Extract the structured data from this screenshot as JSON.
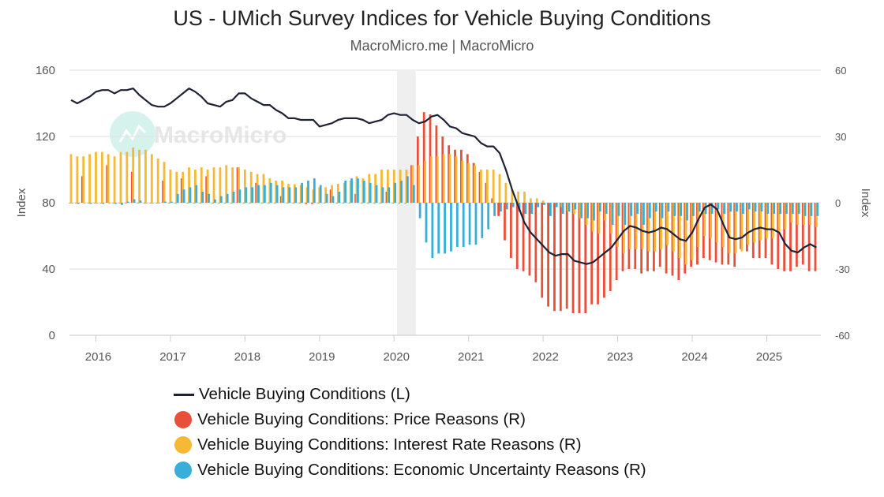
{
  "title": "US - UMich Survey Indices for Vehicle Buying Conditions",
  "subtitle": "MacroMicro.me | MacroMicro",
  "watermark": "MacroMicro",
  "chart_data": {
    "type": "bar+line",
    "left_axis": {
      "label": "Index",
      "ylim": [
        0,
        160
      ],
      "ticks": [
        "0",
        "40",
        "80",
        "120",
        "160"
      ]
    },
    "right_axis": {
      "label": "Index",
      "ylim": [
        -60,
        60
      ],
      "ticks": [
        "-60",
        "-30",
        "0",
        "30",
        "60"
      ]
    },
    "x_ticks": [
      "2016",
      "2017",
      "2018",
      "2019",
      "2020",
      "2021",
      "2022",
      "2023",
      "2024",
      "2025"
    ],
    "grid": true,
    "legend_position": "bottom",
    "recession_shading": [
      "2020-02",
      "2020-04"
    ],
    "x": [
      "2015-09",
      "2015-10",
      "2015-11",
      "2015-12",
      "2016-01",
      "2016-02",
      "2016-03",
      "2016-04",
      "2016-05",
      "2016-06",
      "2016-07",
      "2016-08",
      "2016-09",
      "2016-10",
      "2016-11",
      "2016-12",
      "2017-01",
      "2017-02",
      "2017-03",
      "2017-04",
      "2017-05",
      "2017-06",
      "2017-07",
      "2017-08",
      "2017-09",
      "2017-10",
      "2017-11",
      "2017-12",
      "2018-01",
      "2018-02",
      "2018-03",
      "2018-04",
      "2018-05",
      "2018-06",
      "2018-07",
      "2018-08",
      "2018-09",
      "2018-10",
      "2018-11",
      "2018-12",
      "2019-01",
      "2019-02",
      "2019-03",
      "2019-04",
      "2019-05",
      "2019-06",
      "2019-07",
      "2019-08",
      "2019-09",
      "2019-10",
      "2019-11",
      "2019-12",
      "2020-01",
      "2020-02",
      "2020-03",
      "2020-04",
      "2020-05",
      "2020-06",
      "2020-07",
      "2020-08",
      "2020-09",
      "2020-10",
      "2020-11",
      "2020-12",
      "2021-01",
      "2021-02",
      "2021-03",
      "2021-04",
      "2021-05",
      "2021-06",
      "2021-07",
      "2021-08",
      "2021-09",
      "2021-10",
      "2021-11",
      "2021-12",
      "2022-01",
      "2022-02",
      "2022-03",
      "2022-04",
      "2022-05",
      "2022-06",
      "2022-07",
      "2022-08",
      "2022-09",
      "2022-10",
      "2022-11",
      "2022-12",
      "2023-01",
      "2023-02",
      "2023-03",
      "2023-04",
      "2023-05",
      "2023-06",
      "2023-07",
      "2023-08",
      "2023-09",
      "2023-10",
      "2023-11",
      "2023-12",
      "2024-01",
      "2024-02",
      "2024-03",
      "2024-04",
      "2024-05",
      "2024-06",
      "2024-07",
      "2024-08",
      "2024-09",
      "2024-10",
      "2024-11",
      "2024-12",
      "2025-01",
      "2025-02",
      "2025-03",
      "2025-04",
      "2025-05",
      "2025-06",
      "2025-07",
      "2025-08",
      "2025-09"
    ],
    "series": [
      {
        "name": "Vehicle Buying Conditions (L)",
        "type": "line",
        "axis": "left",
        "color": "#1f2235",
        "values": [
          142,
          140,
          142,
          144,
          147,
          148,
          148,
          146,
          148,
          148,
          149,
          145,
          142,
          139,
          138,
          138,
          140,
          143,
          146,
          149,
          147,
          144,
          140,
          139,
          138,
          141,
          142,
          146,
          146,
          143,
          141,
          139,
          139,
          136,
          134,
          131,
          131,
          130,
          130,
          130,
          126,
          127,
          128,
          130,
          131,
          131,
          131,
          130,
          128,
          129,
          130,
          133,
          134,
          133,
          133,
          130,
          128,
          129,
          132,
          133,
          130,
          126,
          125,
          122,
          121,
          120,
          116,
          114,
          114,
          110,
          100,
          88,
          78,
          68,
          62,
          58,
          54,
          50,
          48,
          49,
          49,
          45,
          44,
          43,
          44,
          47,
          50,
          53,
          58,
          63,
          66,
          65,
          63,
          62,
          63,
          65,
          64,
          61,
          58,
          57,
          62,
          70,
          77,
          79,
          76,
          67,
          59,
          58,
          59,
          62,
          64,
          65,
          64,
          64,
          62,
          55,
          51,
          50,
          53,
          55,
          53
        ]
      },
      {
        "name": "Vehicle Buying Conditions: Price Reasons (R)",
        "type": "bar",
        "axis": "right",
        "color": "#e8503a",
        "values": [
          0,
          0,
          12,
          0,
          0,
          0,
          17,
          0,
          0,
          0,
          14,
          0,
          0,
          0,
          0,
          10,
          0,
          0,
          11,
          0,
          0,
          0,
          12,
          0,
          0,
          0,
          0,
          16,
          0,
          0,
          9,
          0,
          0,
          0,
          3,
          0,
          0,
          0,
          -0.5,
          -0.5,
          0,
          0,
          6,
          0,
          0,
          0,
          4,
          0,
          0,
          0,
          0,
          5,
          0,
          0,
          0,
          17,
          30,
          41,
          40,
          35,
          30,
          26,
          24,
          24,
          22,
          18,
          14,
          9,
          2,
          -6,
          -17,
          -25,
          -30,
          -31,
          -33,
          -36,
          -43,
          -47,
          -49,
          -49,
          -48,
          -50,
          -50,
          -50,
          -46,
          -46,
          -43,
          -40,
          -35,
          -31,
          -30,
          -30,
          -32,
          -31,
          -31,
          -29,
          -32,
          -33,
          -35,
          -32,
          -29,
          -28,
          -25,
          -26,
          -27,
          -28,
          -28,
          -29,
          -21,
          -22,
          -25,
          -25,
          -25,
          -28,
          -30,
          -31,
          -31,
          -29,
          -28,
          -31,
          -31
        ]
      },
      {
        "name": "Vehicle Buying Conditions: Interest Rate Reasons (R)",
        "type": "bar",
        "axis": "right",
        "color": "#f5b935",
        "values": [
          22,
          21,
          21,
          22,
          23,
          23,
          22,
          21,
          23,
          23,
          25,
          24,
          24,
          22,
          20,
          18.5,
          15,
          14,
          14,
          16,
          15,
          16,
          15,
          16,
          16,
          17,
          16,
          16,
          15,
          14,
          13,
          13,
          11,
          10,
          10,
          8.5,
          8.4,
          8,
          7,
          6,
          7,
          7,
          8,
          8.6,
          9,
          10,
          12,
          11,
          13,
          13,
          15,
          15,
          15,
          15,
          15,
          17,
          17,
          19,
          21,
          21,
          22,
          22,
          21,
          19,
          18,
          17,
          15,
          15,
          15,
          13,
          9,
          6,
          5,
          5,
          2,
          2,
          1,
          0,
          0,
          -2,
          -4,
          -5,
          -7,
          -10,
          -13,
          -14,
          -8,
          -14,
          -20,
          -23,
          -21,
          -21,
          -21,
          -22,
          -22,
          -21,
          -19,
          -22,
          -25,
          -28,
          -26,
          -20,
          -15,
          -16,
          -18,
          -20,
          -23,
          -23,
          -22,
          -19,
          -18,
          -17,
          -16,
          -16,
          -14,
          -12,
          -9,
          -10,
          -10,
          -10,
          -11
        ]
      },
      {
        "name": "Vehicle Buying Conditions: Economic Uncertainty Reasons (R)",
        "type": "bar",
        "axis": "right",
        "color": "#3aaedb",
        "values": [
          0,
          -0.5,
          0,
          -0.5,
          0,
          -0.5,
          0,
          -0.5,
          -1,
          0.5,
          1.6,
          1,
          0,
          0,
          0,
          0.5,
          0.5,
          4,
          6,
          7,
          8,
          5,
          4,
          1.5,
          3,
          4,
          5,
          6,
          7,
          7,
          8,
          8,
          9,
          8,
          7,
          7,
          7,
          9,
          10,
          11,
          8,
          4,
          3,
          5,
          10,
          11,
          11,
          10,
          9,
          8,
          7,
          7,
          9,
          10,
          12,
          8,
          -7,
          -18,
          -25,
          -23,
          -23,
          -22,
          -20,
          -20,
          -19,
          -19,
          -16,
          -12,
          -6,
          -4,
          -3,
          -2,
          -4,
          -5,
          -5,
          -2,
          -1,
          -6,
          -2,
          -5,
          -4,
          -3,
          -7,
          -7,
          -8,
          -4,
          -5,
          -10,
          -6,
          -10,
          -6,
          -5,
          -10,
          -7,
          -4,
          -7,
          -4,
          -6,
          -6,
          -8,
          -6,
          -4,
          -5,
          -5,
          -3,
          -5,
          -4,
          -4,
          -5,
          -3,
          -4,
          -4,
          -5,
          -5,
          -5,
          -5,
          -5,
          -5,
          -6,
          -6,
          -6
        ]
      }
    ]
  }
}
